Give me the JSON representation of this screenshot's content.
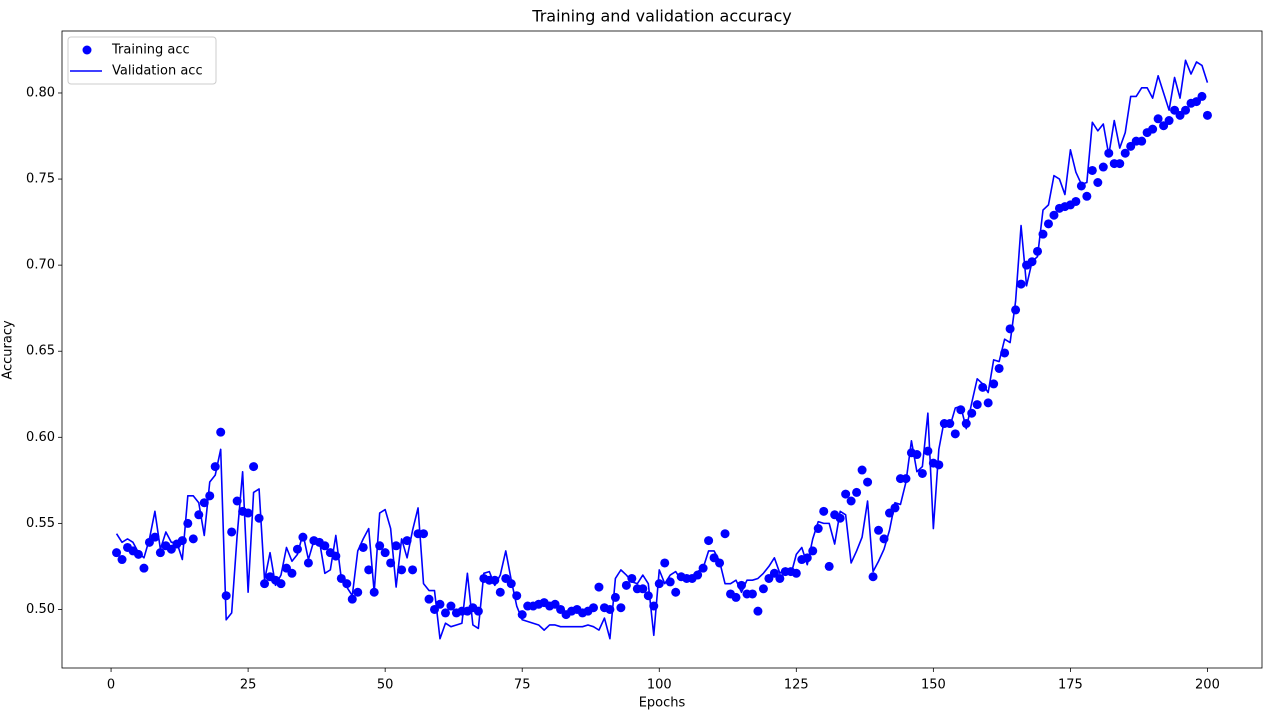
{
  "chart_data": {
    "type": "line",
    "title": "Training and validation accuracy",
    "xlabel": "Epochs",
    "ylabel": "Accuracy",
    "legend": "upper left",
    "xlim": [
      -8.95,
      209.95
    ],
    "ylim": [
      0.466,
      0.836
    ],
    "xticks": [
      0,
      25,
      50,
      75,
      100,
      125,
      150,
      175,
      200
    ],
    "yticks": [
      {
        "value": 0.5,
        "label": "0.50"
      },
      0.55,
      {
        "value": 0.6,
        "label": "0.60"
      },
      0.65,
      {
        "value": 0.7,
        "label": "0.70"
      },
      0.75,
      {
        "value": 0.8,
        "label": "0.80"
      }
    ],
    "x": [
      1,
      2,
      3,
      4,
      5,
      6,
      7,
      8,
      9,
      10,
      11,
      12,
      13,
      14,
      15,
      16,
      17,
      18,
      19,
      20,
      21,
      22,
      23,
      24,
      25,
      26,
      27,
      28,
      29,
      30,
      31,
      32,
      33,
      34,
      35,
      36,
      37,
      38,
      39,
      40,
      41,
      42,
      43,
      44,
      45,
      46,
      47,
      48,
      49,
      50,
      51,
      52,
      53,
      54,
      55,
      56,
      57,
      58,
      59,
      60,
      61,
      62,
      63,
      64,
      65,
      66,
      67,
      68,
      69,
      70,
      71,
      72,
      73,
      74,
      75,
      76,
      77,
      78,
      79,
      80,
      81,
      82,
      83,
      84,
      85,
      86,
      87,
      88,
      89,
      90,
      91,
      92,
      93,
      94,
      95,
      96,
      97,
      98,
      99,
      100,
      101,
      102,
      103,
      104,
      105,
      106,
      107,
      108,
      109,
      110,
      111,
      112,
      113,
      114,
      115,
      116,
      117,
      118,
      119,
      120,
      121,
      122,
      123,
      124,
      125,
      126,
      127,
      128,
      129,
      130,
      131,
      132,
      133,
      134,
      135,
      136,
      137,
      138,
      139,
      140,
      141,
      142,
      143,
      144,
      145,
      146,
      147,
      148,
      149,
      150,
      151,
      152,
      153,
      154,
      155,
      156,
      157,
      158,
      159,
      160,
      161,
      162,
      163,
      164,
      165,
      166,
      167,
      168,
      169,
      170,
      171,
      172,
      173,
      174,
      175,
      176,
      177,
      178,
      179,
      180,
      181,
      182,
      183,
      184,
      185,
      186,
      187,
      188,
      189,
      190,
      191,
      192,
      193,
      194,
      195,
      196,
      197,
      198,
      199,
      200
    ],
    "series": [
      {
        "name": "Training acc",
        "type": "scatter",
        "color": "#0000ff",
        "values": [
          0.533,
          0.529,
          0.536,
          0.534,
          0.532,
          0.524,
          0.539,
          0.542,
          0.533,
          0.537,
          0.535,
          0.538,
          0.54,
          0.55,
          0.541,
          0.555,
          0.562,
          0.566,
          0.583,
          0.603,
          0.508,
          0.545,
          0.563,
          0.557,
          0.556,
          0.583,
          0.553,
          0.515,
          0.519,
          0.517,
          0.515,
          0.524,
          0.521,
          0.535,
          0.542,
          0.527,
          0.54,
          0.539,
          0.537,
          0.533,
          0.531,
          0.518,
          0.515,
          0.506,
          0.51,
          0.536,
          0.523,
          0.51,
          0.537,
          0.533,
          0.527,
          0.537,
          0.523,
          0.54,
          0.523,
          0.544,
          0.544,
          0.506,
          0.5,
          0.503,
          0.498,
          0.502,
          0.498,
          0.499,
          0.499,
          0.501,
          0.499,
          0.518,
          0.517,
          0.517,
          0.51,
          0.518,
          0.515,
          0.508,
          0.497,
          0.502,
          0.502,
          0.503,
          0.504,
          0.502,
          0.503,
          0.5,
          0.497,
          0.499,
          0.5,
          0.498,
          0.499,
          0.501,
          0.513,
          0.501,
          0.5,
          0.507,
          0.501,
          0.514,
          0.518,
          0.512,
          0.512,
          0.508,
          0.502,
          0.515,
          0.527,
          0.516,
          0.51,
          0.519,
          0.518,
          0.518,
          0.52,
          0.524,
          0.54,
          0.53,
          0.527,
          0.544,
          0.509,
          0.507,
          0.514,
          0.509,
          0.509,
          0.499,
          0.512,
          0.518,
          0.521,
          0.518,
          0.522,
          0.522,
          0.521,
          0.529,
          0.53,
          0.534,
          0.547,
          0.557,
          0.525,
          0.555,
          0.553,
          0.567,
          0.563,
          0.568,
          0.581,
          0.574,
          0.519,
          0.546,
          0.541,
          0.556,
          0.559,
          0.576,
          0.576,
          0.591,
          0.59,
          0.579,
          0.592,
          0.585,
          0.584,
          0.608,
          0.608,
          0.602,
          0.616,
          0.608,
          0.614,
          0.619,
          0.629,
          0.62,
          0.631,
          0.64,
          0.649,
          0.663,
          0.674,
          0.689,
          0.7,
          0.702,
          0.708,
          0.718,
          0.724,
          0.729,
          0.733,
          0.734,
          0.735,
          0.737,
          0.746,
          0.74,
          0.755,
          0.748,
          0.757,
          0.765,
          0.759,
          0.759,
          0.765,
          0.769,
          0.772,
          0.772,
          0.777,
          0.779,
          0.785,
          0.781,
          0.784,
          0.79,
          0.787,
          0.79,
          0.794,
          0.795,
          0.798,
          0.787
        ]
      },
      {
        "name": "Validation acc",
        "type": "line",
        "color": "#0000ff",
        "values": [
          0.544,
          0.539,
          0.541,
          0.539,
          0.533,
          0.53,
          0.541,
          0.557,
          0.535,
          0.545,
          0.539,
          0.539,
          0.529,
          0.566,
          0.566,
          0.562,
          0.543,
          0.574,
          0.578,
          0.593,
          0.494,
          0.498,
          0.543,
          0.58,
          0.51,
          0.568,
          0.57,
          0.517,
          0.533,
          0.514,
          0.52,
          0.536,
          0.528,
          0.532,
          0.544,
          0.529,
          0.54,
          0.54,
          0.521,
          0.523,
          0.543,
          0.518,
          0.513,
          0.508,
          0.534,
          0.541,
          0.547,
          0.51,
          0.556,
          0.558,
          0.547,
          0.513,
          0.541,
          0.53,
          0.546,
          0.559,
          0.515,
          0.511,
          0.511,
          0.483,
          0.492,
          0.49,
          0.491,
          0.492,
          0.521,
          0.491,
          0.489,
          0.521,
          0.522,
          0.514,
          0.52,
          0.534,
          0.517,
          0.502,
          0.494,
          0.493,
          0.492,
          0.491,
          0.488,
          0.491,
          0.491,
          0.49,
          0.49,
          0.49,
          0.49,
          0.49,
          0.491,
          0.49,
          0.488,
          0.495,
          0.483,
          0.518,
          0.523,
          0.52,
          0.516,
          0.515,
          0.52,
          0.515,
          0.485,
          0.523,
          0.515,
          0.52,
          0.522,
          0.517,
          0.52,
          0.517,
          0.522,
          0.524,
          0.534,
          0.534,
          0.528,
          0.515,
          0.515,
          0.517,
          0.51,
          0.517,
          0.517,
          0.518,
          0.521,
          0.525,
          0.53,
          0.521,
          0.524,
          0.52,
          0.532,
          0.536,
          0.526,
          0.541,
          0.551,
          0.55,
          0.55,
          0.538,
          0.557,
          0.555,
          0.527,
          0.534,
          0.542,
          0.563,
          0.522,
          0.528,
          0.535,
          0.546,
          0.562,
          0.561,
          0.574,
          0.598,
          0.58,
          0.583,
          0.614,
          0.547,
          0.593,
          0.61,
          0.606,
          0.617,
          0.618,
          0.605,
          0.62,
          0.634,
          0.631,
          0.626,
          0.645,
          0.644,
          0.657,
          0.655,
          0.679,
          0.723,
          0.688,
          0.702,
          0.705,
          0.732,
          0.735,
          0.752,
          0.75,
          0.741,
          0.767,
          0.754,
          0.747,
          0.748,
          0.783,
          0.778,
          0.782,
          0.764,
          0.784,
          0.768,
          0.777,
          0.798,
          0.798,
          0.803,
          0.803,
          0.797,
          0.81,
          0.8,
          0.79,
          0.809,
          0.797,
          0.819,
          0.811,
          0.818,
          0.816,
          0.806
        ]
      }
    ]
  }
}
